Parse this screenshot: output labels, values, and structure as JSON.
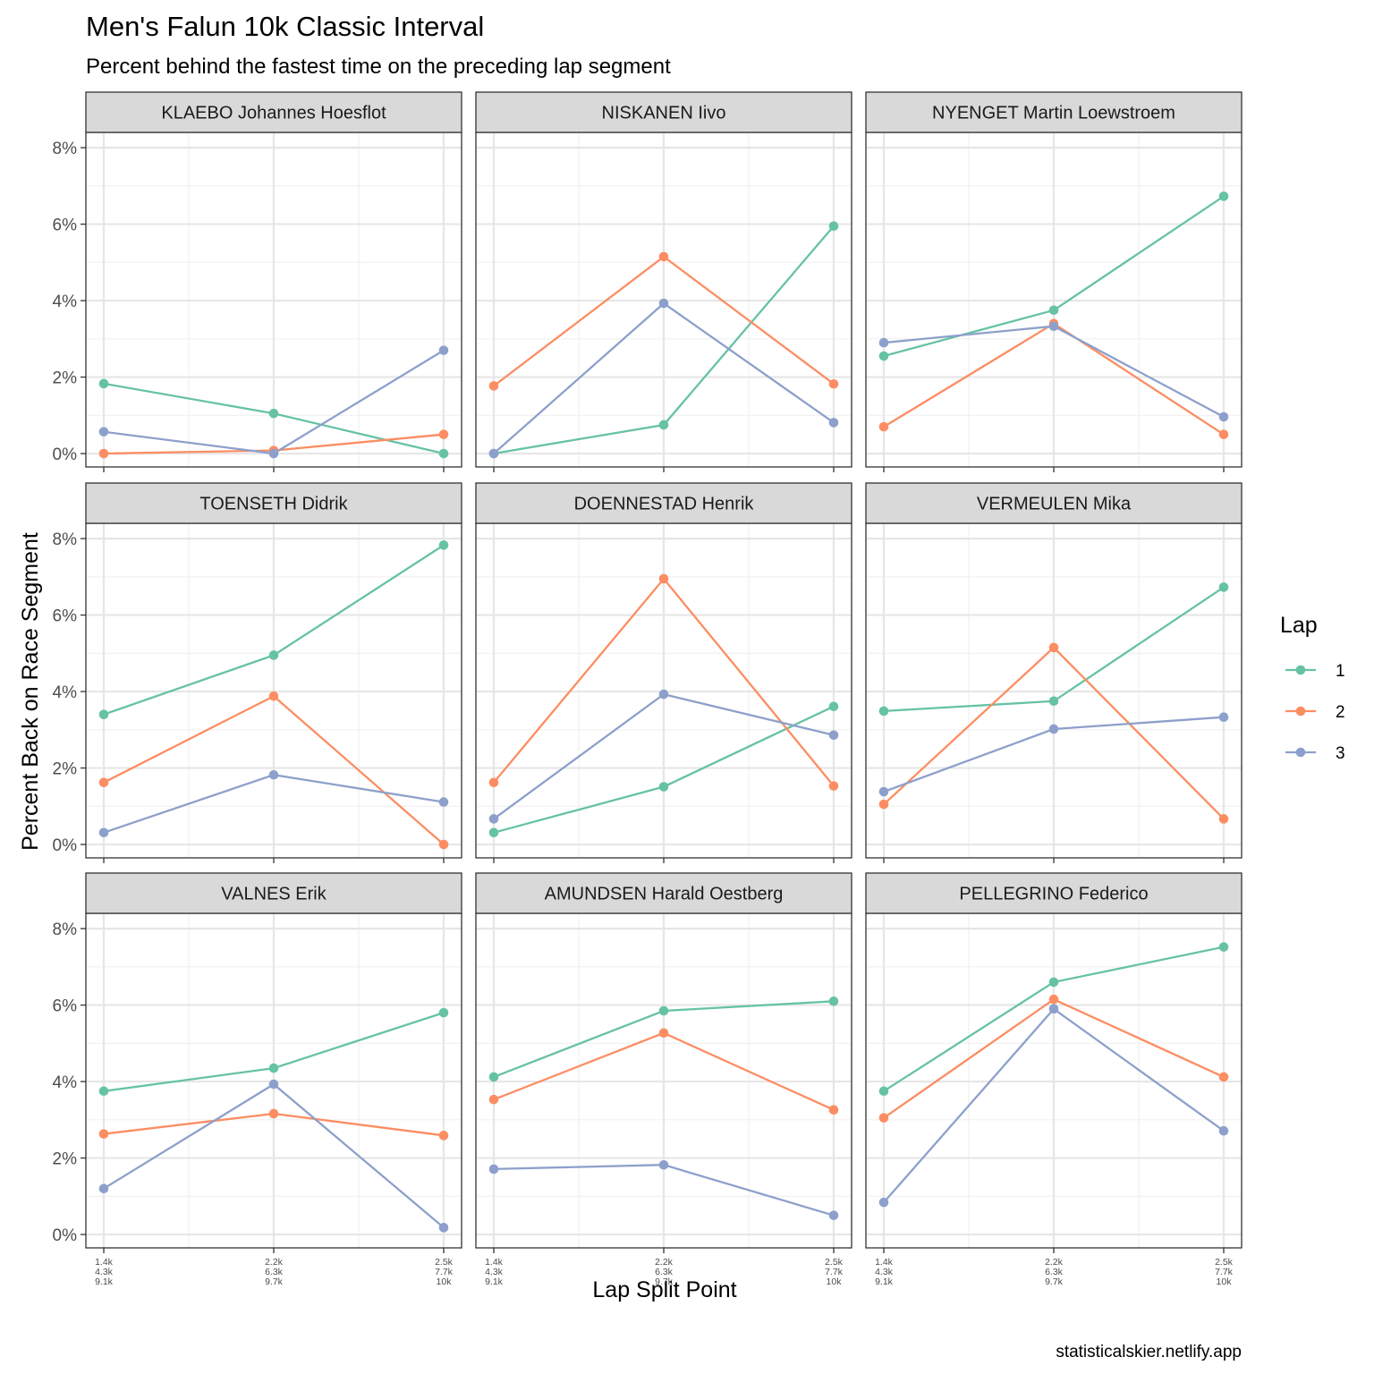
{
  "chart_data": {
    "type": "line",
    "title": "Men's Falun 10k Classic Interval",
    "subtitle": "Percent behind the fastest time on the preceding lap segment",
    "xlabel": "Lap Split Point",
    "ylabel": "Percent Back on Race Segment",
    "caption": "statisticalskier.netlify.app",
    "x_tick_labels": [
      [
        "1.4k",
        "4.3k",
        "9.1k"
      ],
      [
        "2.2k",
        "6.3k",
        "9.7k"
      ],
      [
        "2.5k",
        "7.7k",
        "10k"
      ]
    ],
    "y_ticks": [
      0,
      2,
      4,
      6,
      8
    ],
    "y_tick_labels": [
      "0%",
      "2%",
      "4%",
      "6%",
      "8%"
    ],
    "ylim": [
      -0.35,
      8.4
    ],
    "grid": true,
    "legend": {
      "title": "Lap",
      "position": "right",
      "items": [
        {
          "label": "1",
          "color": "#66c2a5"
        },
        {
          "label": "2",
          "color": "#fc8d62"
        },
        {
          "label": "3",
          "color": "#8da0cb"
        }
      ]
    },
    "panels": [
      {
        "name": "KLAEBO Johannes Hoesflot",
        "series": [
          {
            "lap": "1",
            "values": [
              1.83,
              1.05,
              0.0
            ]
          },
          {
            "lap": "2",
            "values": [
              0.0,
              0.08,
              0.5
            ]
          },
          {
            "lap": "3",
            "values": [
              0.57,
              0.0,
              2.7
            ]
          }
        ]
      },
      {
        "name": "NISKANEN Iivo",
        "series": [
          {
            "lap": "1",
            "values": [
              0.0,
              0.75,
              5.95
            ]
          },
          {
            "lap": "2",
            "values": [
              1.77,
              5.15,
              1.82
            ]
          },
          {
            "lap": "3",
            "values": [
              0.0,
              3.93,
              0.81
            ]
          }
        ]
      },
      {
        "name": "NYENGET Martin Loewstroem",
        "series": [
          {
            "lap": "1",
            "values": [
              2.55,
              3.75,
              6.73
            ]
          },
          {
            "lap": "2",
            "values": [
              0.7,
              3.4,
              0.5
            ]
          },
          {
            "lap": "3",
            "values": [
              2.9,
              3.33,
              0.96
            ]
          }
        ]
      },
      {
        "name": "TOENSETH Didrik",
        "series": [
          {
            "lap": "1",
            "values": [
              3.4,
              4.95,
              7.83
            ]
          },
          {
            "lap": "2",
            "values": [
              1.62,
              3.88,
              0.0
            ]
          },
          {
            "lap": "3",
            "values": [
              0.31,
              1.82,
              1.11
            ]
          }
        ]
      },
      {
        "name": "DOENNESTAD Henrik",
        "series": [
          {
            "lap": "1",
            "values": [
              0.31,
              1.51,
              3.61
            ]
          },
          {
            "lap": "2",
            "values": [
              1.62,
              6.95,
              1.53
            ]
          },
          {
            "lap": "3",
            "values": [
              0.67,
              3.93,
              2.86
            ]
          }
        ]
      },
      {
        "name": "VERMEULEN Mika",
        "series": [
          {
            "lap": "1",
            "values": [
              3.49,
              3.75,
              6.73
            ]
          },
          {
            "lap": "2",
            "values": [
              1.05,
              5.15,
              0.67
            ]
          },
          {
            "lap": "3",
            "values": [
              1.38,
              3.02,
              3.33
            ]
          }
        ]
      },
      {
        "name": "VALNES Erik",
        "series": [
          {
            "lap": "1",
            "values": [
              3.75,
              4.35,
              5.8
            ]
          },
          {
            "lap": "2",
            "values": [
              2.63,
              3.16,
              2.59
            ]
          },
          {
            "lap": "3",
            "values": [
              1.2,
              3.93,
              0.18
            ]
          }
        ]
      },
      {
        "name": "AMUNDSEN Harald Oestberg",
        "series": [
          {
            "lap": "1",
            "values": [
              4.12,
              5.85,
              6.1
            ]
          },
          {
            "lap": "2",
            "values": [
              3.53,
              5.27,
              3.26
            ]
          },
          {
            "lap": "3",
            "values": [
              1.71,
              1.82,
              0.5
            ]
          }
        ]
      },
      {
        "name": "PELLEGRINO Federico",
        "series": [
          {
            "lap": "1",
            "values": [
              3.75,
              6.6,
              7.52
            ]
          },
          {
            "lap": "2",
            "values": [
              3.05,
              6.15,
              4.12
            ]
          },
          {
            "lap": "3",
            "values": [
              0.84,
              5.9,
              2.71
            ]
          }
        ]
      }
    ]
  }
}
